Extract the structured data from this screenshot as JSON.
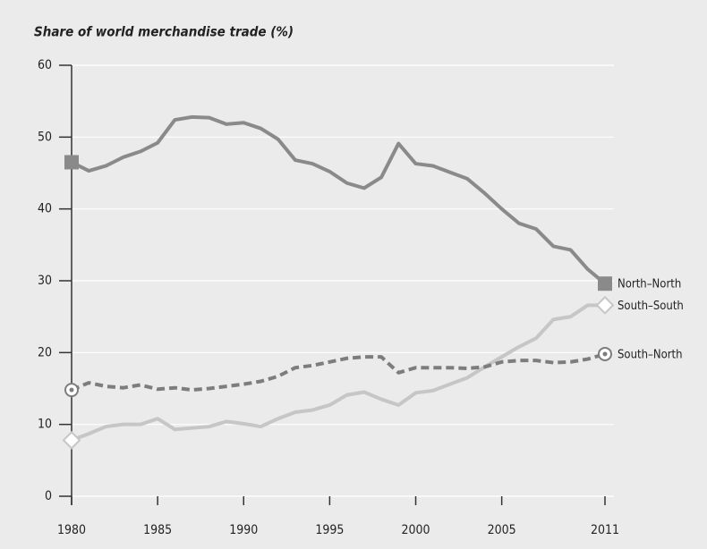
{
  "chart_data": {
    "type": "line",
    "title": "Share of world merchandise trade (%)",
    "x": [
      1980,
      1981,
      1982,
      1983,
      1984,
      1985,
      1986,
      1987,
      1988,
      1989,
      1990,
      1991,
      1992,
      1993,
      1994,
      1995,
      1996,
      1997,
      1998,
      1999,
      2000,
      2001,
      2002,
      2003,
      2004,
      2005,
      2006,
      2007,
      2008,
      2009,
      2010,
      2011
    ],
    "series": [
      {
        "name": "North–North",
        "color": "#8a8a8a",
        "dashed": false,
        "marker": "square",
        "values": [
          46.5,
          45.3,
          46.0,
          47.2,
          48.0,
          49.2,
          52.4,
          52.8,
          52.7,
          51.8,
          52.0,
          51.2,
          49.7,
          46.8,
          46.3,
          45.2,
          43.6,
          42.9,
          44.4,
          49.1,
          46.3,
          46.0,
          45.1,
          44.2,
          42.2,
          40.0,
          38.0,
          37.2,
          34.8,
          34.3,
          31.6,
          29.6
        ]
      },
      {
        "name": "South–South",
        "color": "#c6c6c6",
        "dashed": false,
        "marker": "diamond",
        "values": [
          7.8,
          8.7,
          9.7,
          10.0,
          10.0,
          10.8,
          9.3,
          9.5,
          9.7,
          10.4,
          10.1,
          9.7,
          10.8,
          11.7,
          12.0,
          12.7,
          14.1,
          14.5,
          13.5,
          12.7,
          14.4,
          14.7,
          15.6,
          16.5,
          18.0,
          19.4,
          20.8,
          22.0,
          24.6,
          25.0,
          26.6,
          26.6
        ]
      },
      {
        "name": "South–North",
        "color": "#7d7d7d",
        "dashed": true,
        "marker": "circle",
        "values": [
          14.8,
          15.8,
          15.3,
          15.1,
          15.5,
          14.9,
          15.1,
          14.8,
          15.0,
          15.3,
          15.6,
          16.0,
          16.7,
          17.9,
          18.2,
          18.7,
          19.2,
          19.4,
          19.4,
          17.2,
          17.9,
          17.9,
          17.9,
          17.8,
          18.0,
          18.7,
          18.9,
          18.9,
          18.6,
          18.7,
          19.1,
          19.8
        ]
      }
    ],
    "xlim": [
      1980,
      2011
    ],
    "xticks": [
      1980,
      1985,
      1990,
      1995,
      2000,
      2005,
      2011
    ],
    "ylim": [
      0,
      60
    ],
    "yticks": [
      0,
      10,
      20,
      30,
      40,
      50,
      60
    ],
    "grid": true
  }
}
